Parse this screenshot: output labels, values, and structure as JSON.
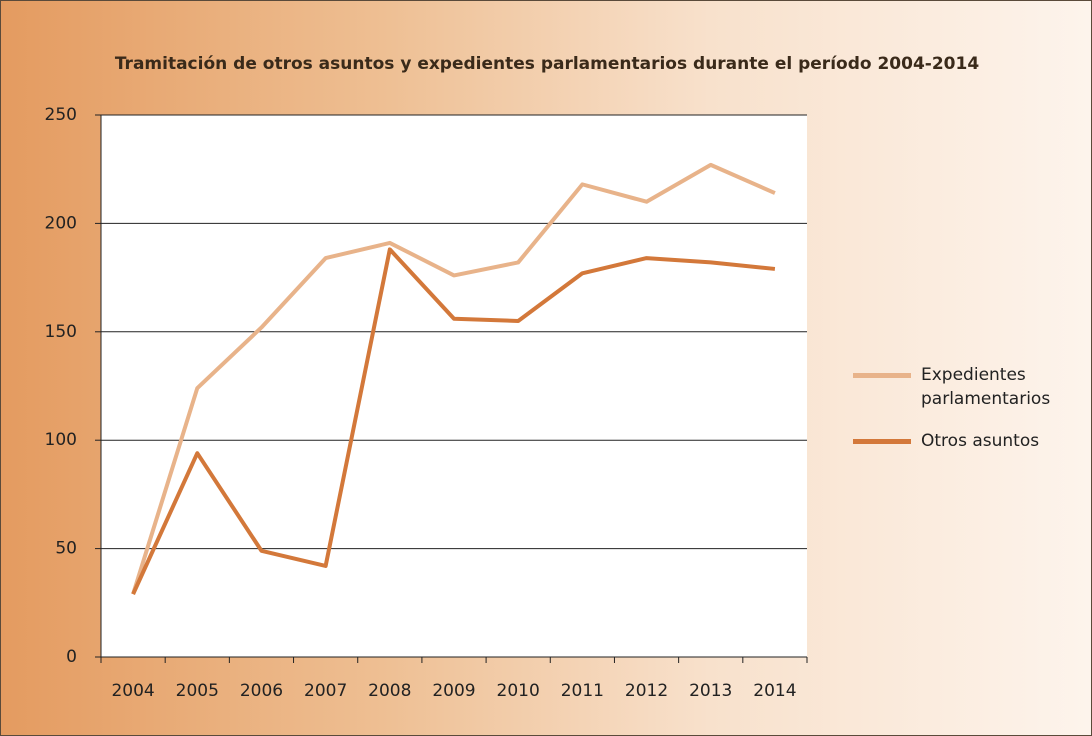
{
  "chart_data": {
    "type": "line",
    "title": "Tramitación de otros asuntos y expedientes parlamentarios durante el período 2004-2014",
    "categories": [
      "2004",
      "2005",
      "2006",
      "2007",
      "2008",
      "2009",
      "2010",
      "2011",
      "2012",
      "2013",
      "2014"
    ],
    "series": [
      {
        "name": "Expedientes parlamentarios",
        "color": "#e8b38a",
        "values": [
          29,
          124,
          152,
          184,
          191,
          176,
          182,
          218,
          210,
          227,
          214
        ]
      },
      {
        "name": "Otros asuntos",
        "color": "#d3783a",
        "values": [
          29,
          94,
          49,
          42,
          188,
          156,
          155,
          177,
          184,
          182,
          179
        ]
      }
    ],
    "ylim": [
      0,
      250
    ],
    "yticks": [
      0,
      50,
      100,
      150,
      200,
      250
    ],
    "grid": true,
    "legend": "right"
  }
}
